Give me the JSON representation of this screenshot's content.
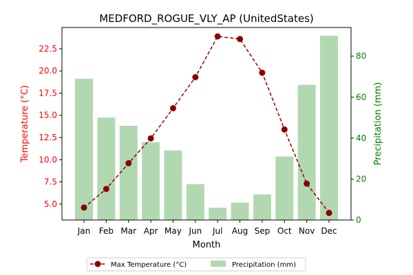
{
  "chart_data": {
    "type": "bar",
    "title": "MEDFORD_ROGUE_VLY_AP (UnitedStates)",
    "xlabel": "Month",
    "ylabel_left": "Temperature (°C)",
    "ylabel_right": "Precipitation (mm)",
    "categories": [
      "Jan",
      "Feb",
      "Mar",
      "Apr",
      "May",
      "Jun",
      "Jul",
      "Aug",
      "Sep",
      "Oct",
      "Nov",
      "Dec"
    ],
    "ylim_left": [
      3.2,
      24.9
    ],
    "ylim_right": [
      0,
      94
    ],
    "yticks_left": [
      "5.0",
      "7.5",
      "10.0",
      "12.5",
      "15.0",
      "17.5",
      "20.0",
      "22.5"
    ],
    "yticks_right": [
      "0",
      "20",
      "40",
      "60",
      "80"
    ],
    "series": [
      {
        "name": "Max Temperature (°C)",
        "type": "line",
        "axis": "left",
        "color": "#8b0000",
        "values": [
          4.6,
          6.7,
          9.6,
          12.4,
          15.8,
          19.3,
          23.9,
          23.6,
          19.8,
          13.4,
          7.3,
          4.0
        ]
      },
      {
        "name": "Precipitation (mm)",
        "type": "bar",
        "axis": "right",
        "color": "#b2d8b2",
        "values": [
          69,
          50,
          46,
          38,
          34,
          17.5,
          6,
          8.5,
          12.5,
          31,
          66,
          90
        ]
      }
    ],
    "legend": {
      "position": "bottom-center",
      "items": [
        "Max Temperature (°C)",
        "Precipitation (mm)"
      ]
    },
    "colors": {
      "left_axis": "#ff0000",
      "right_axis": "#008000",
      "line": "#8b0000",
      "bars": "#b2d8b2"
    },
    "grid": false
  }
}
